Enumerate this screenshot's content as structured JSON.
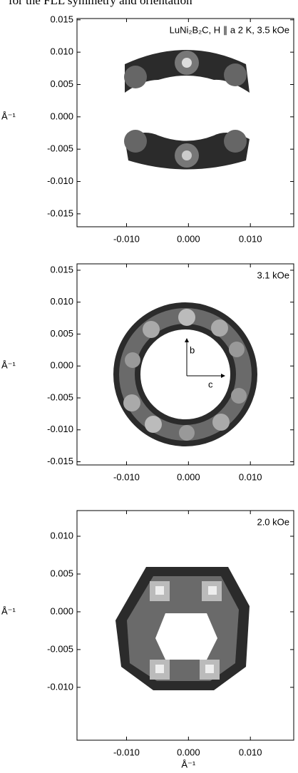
{
  "header_text": "for the FLL symmetry and orientation",
  "chart_data": [
    {
      "type": "image",
      "annotation": "LuNi₂B₂C, H ∥ a   2 K, 3.5 kOe",
      "ylabel": "Å⁻¹",
      "xlim": [
        -0.018,
        0.017
      ],
      "ylim": [
        -0.017,
        0.0152
      ],
      "xticks": [
        {
          "value": -0.01,
          "label": "-0.010"
        },
        {
          "value": 0,
          "label": "0.000"
        },
        {
          "value": 0.01,
          "label": "0.010"
        }
      ],
      "yticks": [
        {
          "value": 0.015,
          "label": "0.015"
        },
        {
          "value": 0.01,
          "label": "0.010"
        },
        {
          "value": 0.005,
          "label": "0.005"
        },
        {
          "value": 0,
          "label": "0.000"
        },
        {
          "value": -0.005,
          "label": "-0.005"
        },
        {
          "value": -0.01,
          "label": "-0.010"
        },
        {
          "value": -0.015,
          "label": "-0.015"
        }
      ]
    },
    {
      "type": "image",
      "annotation": "3.1 kOe",
      "ylabel": "Å⁻¹",
      "axis_labels": [
        "b",
        "c"
      ],
      "xlim": [
        -0.018,
        0.017
      ],
      "ylim": [
        -0.0155,
        0.016
      ],
      "xticks": [
        {
          "value": -0.01,
          "label": "-0.010"
        },
        {
          "value": 0,
          "label": "0.000"
        },
        {
          "value": 0.01,
          "label": "0.010"
        }
      ],
      "yticks": [
        {
          "value": 0.015,
          "label": "0.015"
        },
        {
          "value": 0.01,
          "label": "0.010"
        },
        {
          "value": 0.005,
          "label": "0.005"
        },
        {
          "value": 0,
          "label": "0.000"
        },
        {
          "value": -0.005,
          "label": "-0.005"
        },
        {
          "value": -0.01,
          "label": "-0.010"
        },
        {
          "value": -0.015,
          "label": "-0.015"
        }
      ]
    },
    {
      "type": "image",
      "annotation": "2.0 kOe",
      "ylabel": "Å⁻¹",
      "xlabel": "Å⁻¹",
      "xlim": [
        -0.018,
        0.017
      ],
      "ylim": [
        -0.017,
        0.0134
      ],
      "xticks": [
        {
          "value": -0.01,
          "label": "-0.010"
        },
        {
          "value": 0,
          "label": "0.000"
        },
        {
          "value": 0.01,
          "label": "0.010"
        }
      ],
      "yticks": [
        {
          "value": 0.01,
          "label": "0.010"
        },
        {
          "value": 0.005,
          "label": "0.005"
        },
        {
          "value": 0,
          "label": "0.000"
        },
        {
          "value": -0.005,
          "label": "-0.005"
        },
        {
          "value": -0.01,
          "label": "-0.010"
        }
      ]
    }
  ]
}
